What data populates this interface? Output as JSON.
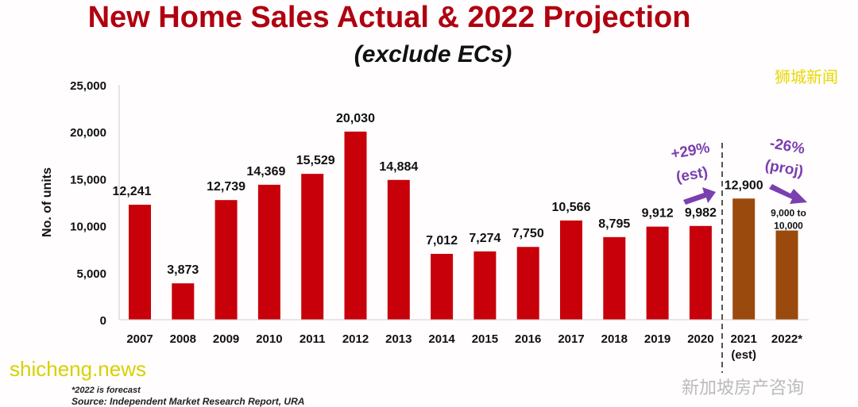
{
  "chart_data": {
    "type": "bar",
    "title": "New Home Sales Actual & 2022 Projection",
    "subtitle": "(exclude ECs)",
    "ylabel": "No. of units",
    "xlabel": "",
    "ylim": [
      0,
      25000
    ],
    "yticks": [
      "0",
      "5,000",
      "10,000",
      "15,000",
      "20,000",
      "25,000"
    ],
    "grid": false,
    "categories": [
      "2007",
      "2008",
      "2009",
      "2010",
      "2011",
      "2012",
      "2013",
      "2014",
      "2015",
      "2016",
      "2017",
      "2018",
      "2019",
      "2020",
      "2021",
      "2022*"
    ],
    "category_sublabels": {
      "2021": "(est)"
    },
    "values": [
      12241,
      3873,
      12739,
      14369,
      15529,
      20030,
      14884,
      7012,
      7274,
      7750,
      10566,
      8795,
      9912,
      9982,
      12900,
      9500
    ],
    "data_labels": [
      "12,241",
      "3,873",
      "12,739",
      "14,369",
      "15,529",
      "20,030",
      "14,884",
      "7,012",
      "7,274",
      "7,750",
      "10,566",
      "8,795",
      "9,912",
      "9,982",
      "12,900",
      "9,000 to 10,000"
    ],
    "colors": {
      "actual": "#c8000a",
      "estimate": "#9a4a0c",
      "title": "#b00010",
      "annotation": "#7a3fb0"
    },
    "annotations": [
      {
        "text": "+29%",
        "sub": "(est)"
      },
      {
        "text": "-26%",
        "sub": "(proj)"
      }
    ],
    "footnote": "*2022 is forecast",
    "source": "Source: Independent Market Research Report, URA"
  },
  "watermarks": [
    "狮城新闻",
    "新加坡房产咨询",
    "shicheng.news"
  ]
}
